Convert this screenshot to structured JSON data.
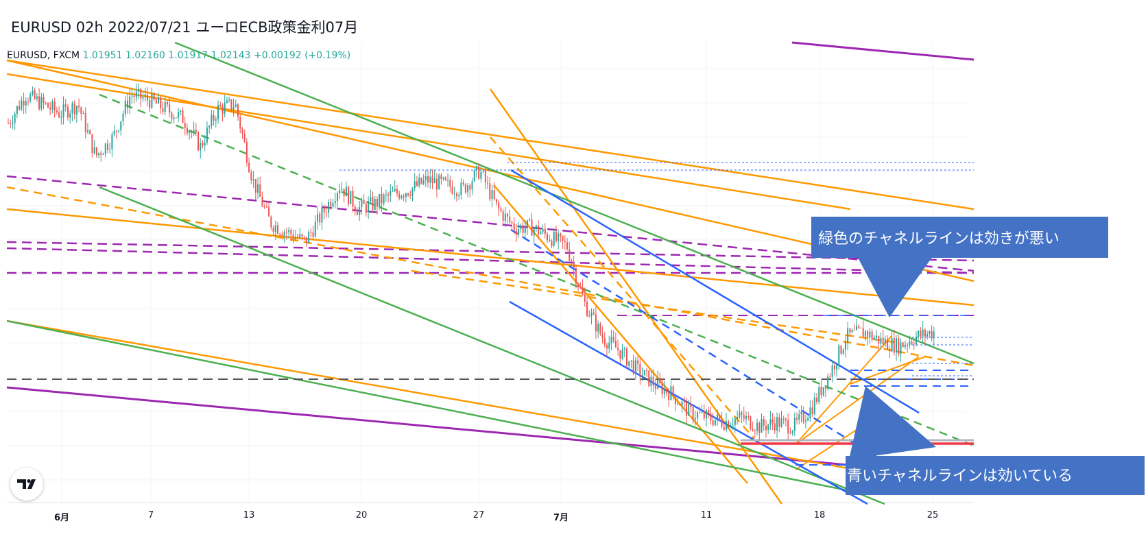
{
  "chart_title": "EURUSD 02h 2022/07/21 ユーロECB政策金利07月",
  "legend": {
    "symbol": "EURUSD, FXCM",
    "open": "1.01951",
    "high": "1.02160",
    "low": "1.01917",
    "close": "1.02143",
    "change": "+0.00192 (+0.19%)"
  },
  "annotations": {
    "green_channel_note": "緑色のチャネルラインは効きが悪い",
    "blue_channel_note": "青いチャネルラインは効いている"
  },
  "colors": {
    "up_candle": "#26a69a",
    "down_candle": "#ef5350",
    "orange_line": "#ff9800",
    "green_line": "#4caf50",
    "blue_line": "#2962ff",
    "purple_line": "#9c27b0",
    "red_line": "#f23645",
    "callout_fill": "#4472c4",
    "grid": "#f0f3fa"
  },
  "icons": {
    "logo": "tradingview-logo-icon"
  },
  "chart_data": {
    "type": "candlestick",
    "title": "EURUSD 02h 2022/07/21 ユーロECB政策金利07月",
    "x_tick_labels": [
      "6月",
      "7",
      "13",
      "20",
      "27",
      "7月",
      "11",
      "18",
      "25"
    ],
    "x_tick_bold": [
      true,
      false,
      false,
      false,
      false,
      true,
      false,
      false,
      false
    ],
    "grid": true,
    "series": [
      {
        "name": "EURUSD, FXCM",
        "close_path_estimate": [
          1.065,
          1.071,
          1.069,
          1.067,
          1.069,
          1.058,
          1.062,
          1.071,
          1.07,
          1.068,
          1.066,
          1.06,
          1.068,
          1.069,
          1.053,
          1.044,
          1.042,
          1.04,
          1.046,
          1.052,
          1.047,
          1.048,
          1.05,
          1.051,
          1.053,
          1.052,
          1.051,
          1.055,
          1.047,
          1.043,
          1.043,
          1.041,
          1.039,
          1.027,
          1.02,
          1.017,
          1.013,
          1.01,
          1.008,
          1.004,
          1.003,
          1.002,
          1.003,
          1.001,
          1.002,
          1.001,
          1.005,
          1.012,
          1.02,
          1.021,
          1.019,
          1.018,
          1.02,
          1.021
        ]
      }
    ]
  }
}
